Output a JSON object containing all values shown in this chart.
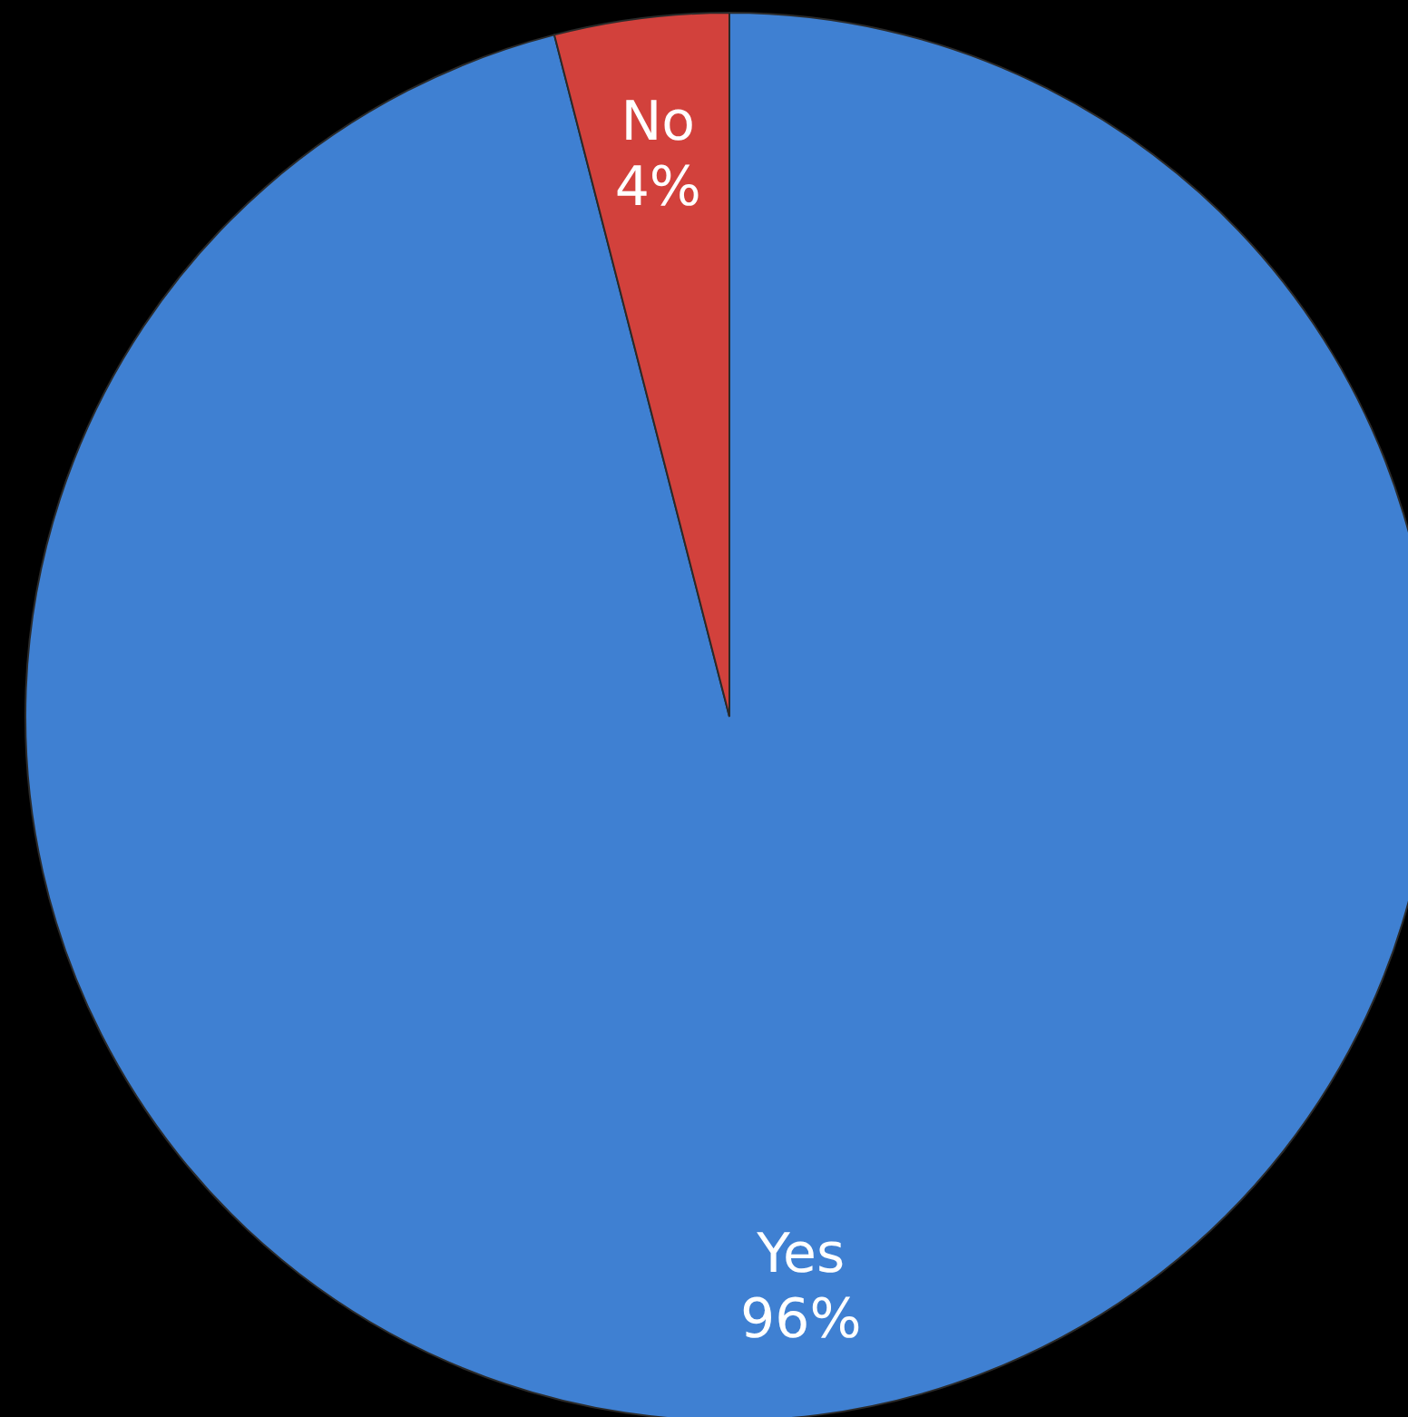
{
  "chart_data": {
    "type": "pie",
    "categories": [
      "Yes",
      "No"
    ],
    "values": [
      96,
      4
    ],
    "colors": [
      "#3f80d2",
      "#d2413c"
    ],
    "value_labels": [
      "96%",
      "4%"
    ],
    "legend": false
  }
}
